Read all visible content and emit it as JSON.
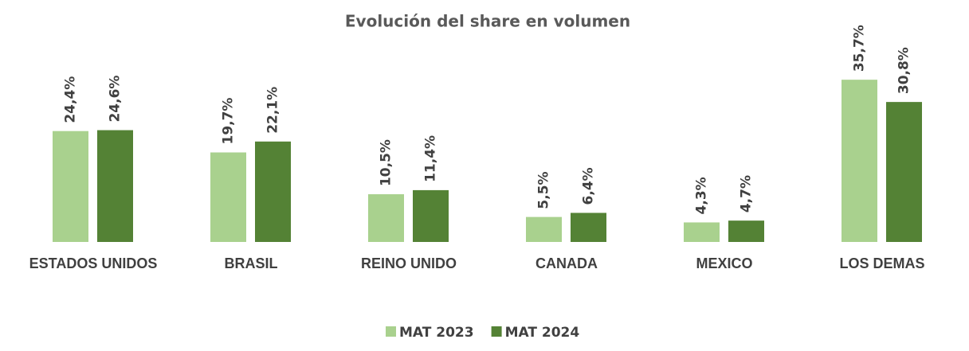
{
  "chart_data": {
    "type": "bar",
    "title": "Evolución del share en volumen",
    "categories": [
      "ESTADOS UNIDOS",
      "BRASIL",
      "REINO UNIDO",
      "CANADA",
      "MEXICO",
      "LOS DEMAS"
    ],
    "series": [
      {
        "name": "MAT 2023",
        "color": "#a9d18e",
        "values": [
          24.4,
          19.7,
          10.5,
          5.5,
          4.3,
          35.7
        ],
        "value_labels": [
          "24,4%",
          "19,7%",
          "10,5%",
          "5,5%",
          "4,3%",
          "35,7%"
        ]
      },
      {
        "name": "MAT 2024",
        "color": "#548235",
        "values": [
          24.6,
          22.1,
          11.4,
          6.4,
          4.7,
          30.8
        ],
        "value_labels": [
          "24,6%",
          "22,1%",
          "11,4%",
          "6,4%",
          "4,7%",
          "30,8%"
        ]
      }
    ],
    "ylim": [
      0,
      40
    ],
    "legend": "bottom"
  }
}
